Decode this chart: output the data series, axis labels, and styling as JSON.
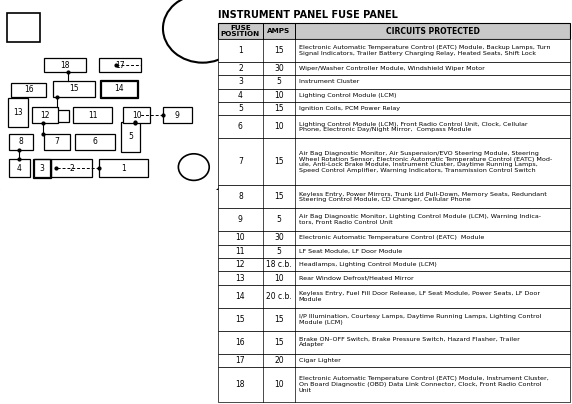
{
  "title": "INSTRUMENT PANEL FUSE PANEL",
  "rows": [
    [
      "1",
      "15",
      "Electronic Automatic Temperature Control (EATC) Module, Backup Lamps, Turn\nSignal Indicators, Trailer Battery Charging Relay, Heated Seats, Shift Lock"
    ],
    [
      "2",
      "30",
      "Wiper/Washer Controller Module, Windshield Wiper Motor"
    ],
    [
      "3",
      "5",
      "Instrument Cluster"
    ],
    [
      "4",
      "10",
      "Lighting Control Module (LCM)"
    ],
    [
      "5",
      "15",
      "Ignition Coils, PCM Power Relay"
    ],
    [
      "6",
      "10",
      "Lighting Control Module (LCM), Front Radio Control Unit, Clock, Cellular\nPhone, Electronic Day/Night Mirror,  Compass Module"
    ],
    [
      "7",
      "15",
      "Air Bag Diagnostic Monitor, Air Suspension/EVO Steering Module, Steering\nWheel Rotation Sensor, Electronic Automatic Temperature Control (EATC) Mod-\nule, Anti-Lock Brake Module, Instrument Cluster, Daytime Running Lamps,\nSpeed Control Amplifier, Warning Indicators, Transmission Control Switch"
    ],
    [
      "8",
      "15",
      "Keyless Entry, Power Mirrors, Trunk Lid Pull-Down, Memory Seats, Redundant\nSteering Control Module, CD Changer, Cellular Phone"
    ],
    [
      "9",
      "5",
      "Air Bag Diagnostic Monitor, Lighting Control Module (LCM), Warning Indica-\ntors, Front Radio Control Unit"
    ],
    [
      "10",
      "30",
      "Electronic Automatic Temperature Control (EATC)  Module"
    ],
    [
      "11",
      "5",
      "LF Seat Module, LF Door Module"
    ],
    [
      "12",
      "18 c.b.",
      "Headlamps, Lighting Control Module (LCM)"
    ],
    [
      "13",
      "10",
      "Rear Window Defrost/Heated Mirror"
    ],
    [
      "14",
      "20 c.b.",
      "Keyless Entry, Fuel Fill Door Release, LF Seat Module, Power Seats, LF Door\nModule"
    ],
    [
      "15",
      "15",
      "I/P Illumination, Courtesy Lamps, Daytime Running Lamps, Lighting Control\nModule (LCM)"
    ],
    [
      "16",
      "15",
      "Brake ON–OFF Switch, Brake Pressure Switch, Hazard Flasher, Trailer\nAdapter"
    ],
    [
      "17",
      "20",
      "Cigar Lighter"
    ],
    [
      "18",
      "10",
      "Electronic Automatic Temperature Control (EATC) Module, Instrument Cluster,\nOn Board Diagnostic (OBD) Data Link Connector, Clock, Front Radio Control\nUnit"
    ]
  ],
  "bg_color": "#ffffff",
  "header_bg": "#c8c8c8",
  "line_color": "#000000",
  "text_color": "#000000"
}
